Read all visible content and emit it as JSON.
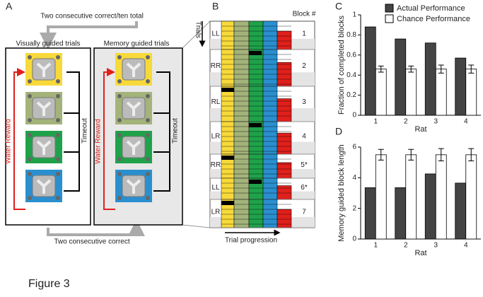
{
  "figure_caption": "Figure 3",
  "panel_labels": [
    "A",
    "B",
    "C",
    "D"
  ],
  "panel_a": {
    "top_arrow": "Two consecutive correct/ten total",
    "bottom_arrow": "Two consecutive correct",
    "left_title": "Visually guided trials",
    "right_title": "Memory guided trials",
    "reward_labels": [
      "Water Reward",
      "Water Reward"
    ],
    "timeout_labels": [
      "Timeout",
      "Timeout"
    ]
  },
  "panel_b": {
    "block_header": "Block #",
    "trials_label": "Trials",
    "x_label": "Trial progression",
    "blocks": [
      {
        "label": "LL",
        "number": "1"
      },
      {
        "label": "RR",
        "number": "2"
      },
      {
        "label": "RL",
        "number": "3"
      },
      {
        "label": "LR",
        "number": "4"
      },
      {
        "label": "RR",
        "number": "5*"
      },
      {
        "label": "LL",
        "number": "6*"
      },
      {
        "label": "LR",
        "number": "7"
      }
    ]
  },
  "chart_data": [
    {
      "type": "bar",
      "y_label": "Fraction of completed blocks",
      "x_label": "Rat",
      "categories": [
        "1",
        "2",
        "3",
        "4"
      ],
      "series": [
        {
          "name": "Actual Performance",
          "color": "#444444",
          "values": [
            0.88,
            0.76,
            0.72,
            0.57
          ]
        },
        {
          "name": "Chance Performance",
          "color": "#ffffff",
          "values": [
            0.46,
            0.46,
            0.46,
            0.46
          ],
          "errors": [
            0.03,
            0.03,
            0.04,
            0.04
          ]
        }
      ],
      "ylim": [
        0,
        1
      ],
      "yticks": [
        0,
        0.2,
        0.4,
        0.6,
        0.8,
        1
      ]
    },
    {
      "type": "bar",
      "y_label": "Memory guided block length",
      "x_label": "Rat",
      "categories": [
        "1",
        "2",
        "3",
        "4"
      ],
      "series": [
        {
          "color": "#444444",
          "values": [
            3.35,
            3.35,
            4.25,
            3.65
          ]
        },
        {
          "color": "#ffffff",
          "values": [
            5.5,
            5.5,
            5.5,
            5.5
          ],
          "errors": [
            0.35,
            0.35,
            0.4,
            0.4
          ]
        }
      ],
      "ylim": [
        0,
        6
      ],
      "yticks": [
        0,
        2,
        4,
        6
      ]
    }
  ]
}
